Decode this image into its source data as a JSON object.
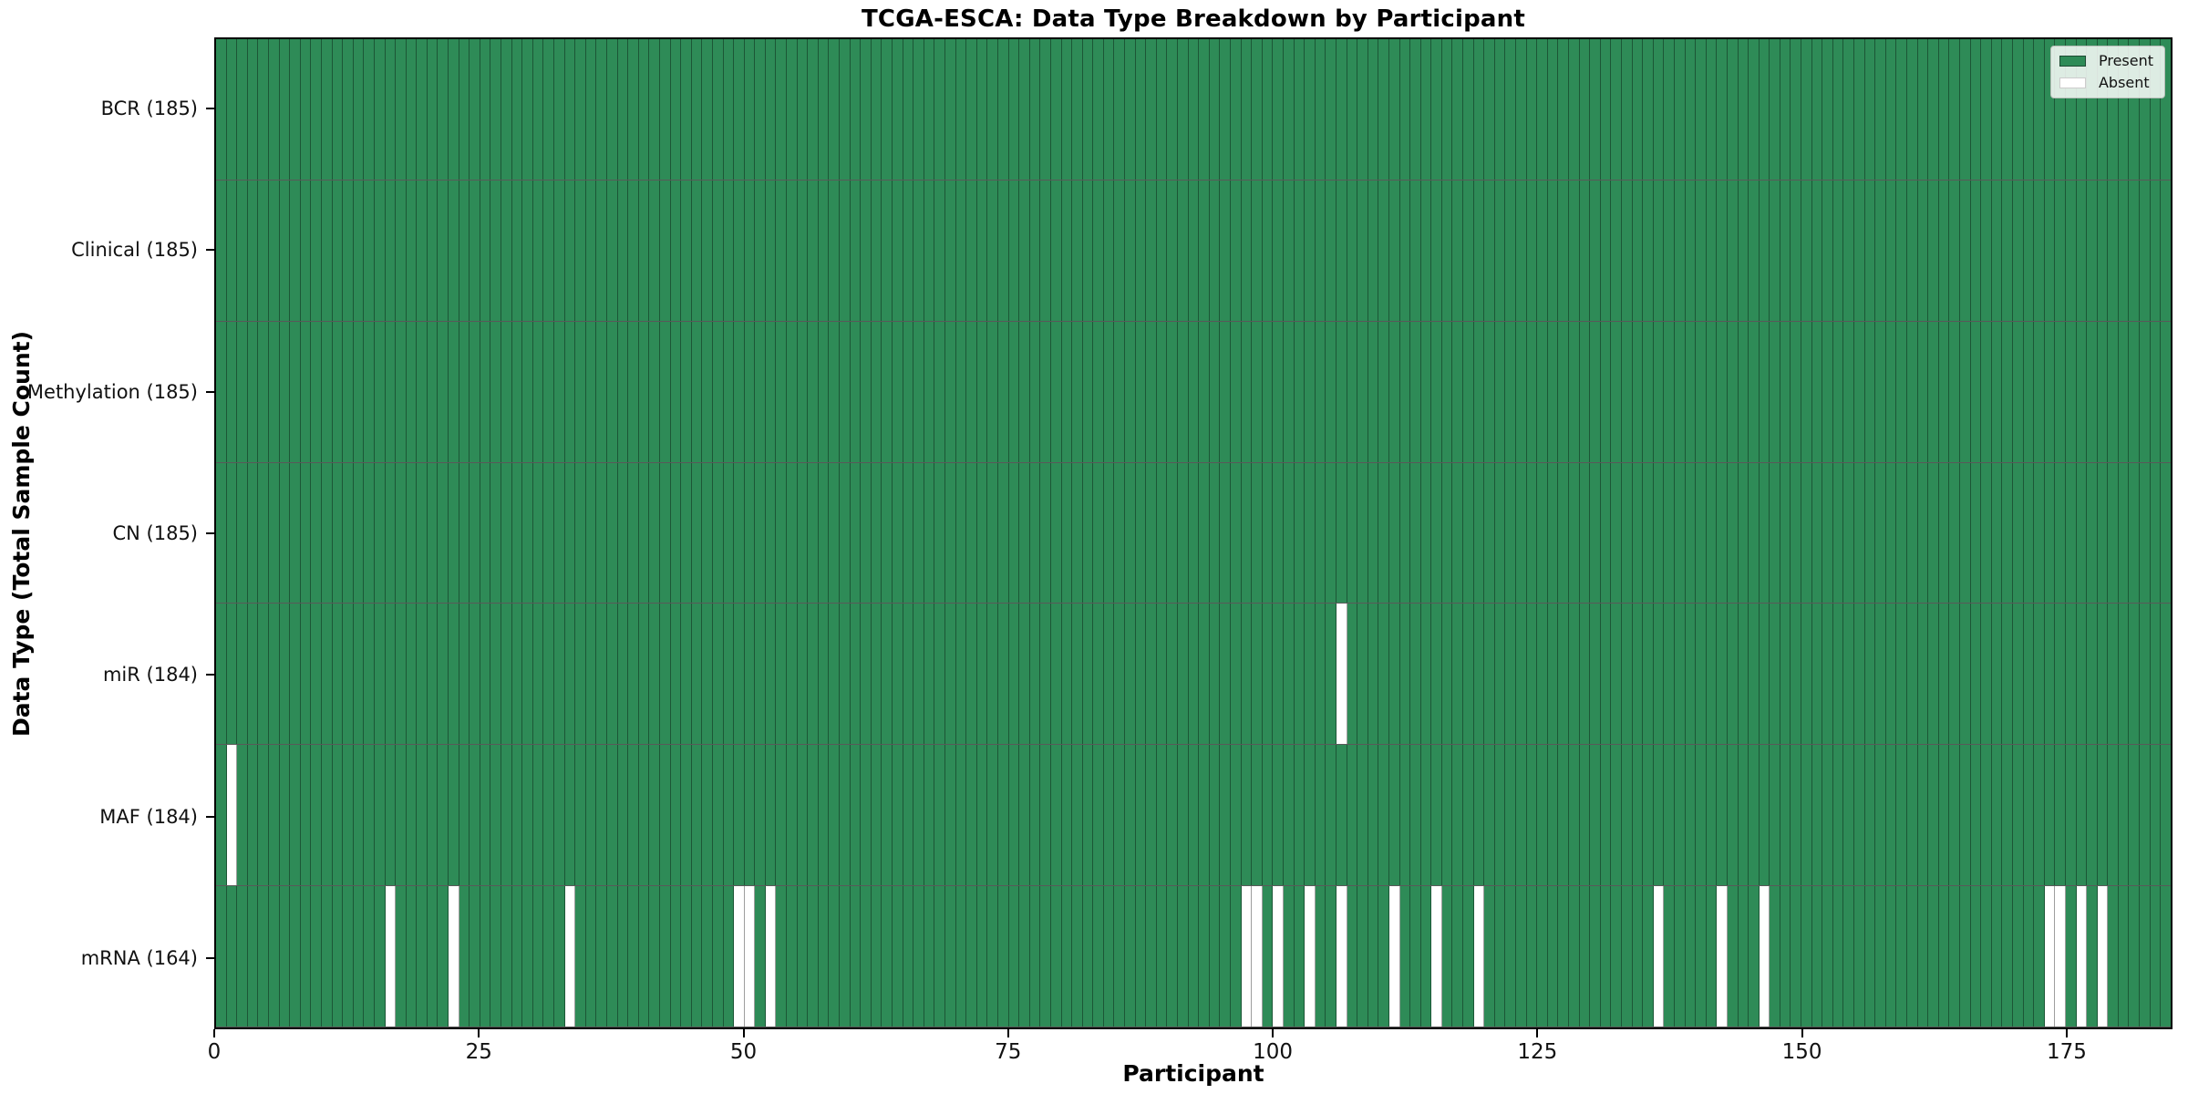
{
  "figure": {
    "title": "TCGA-ESCA: Data Type Breakdown by Participant",
    "xlabel": "Participant",
    "ylabel": "Data Type (Total Sample Count)"
  },
  "legend": {
    "position": "upper-right",
    "items": [
      {
        "label": "Present",
        "color": "#2e8b57",
        "edge": "#1d4a33"
      },
      {
        "label": "Absent",
        "color": "#ffffff",
        "edge": "#cccccc"
      }
    ]
  },
  "chart_data": {
    "type": "heatmap",
    "title": "TCGA-ESCA: Data Type Breakdown by Participant",
    "xlabel": "Participant",
    "ylabel": "Data Type (Total Sample Count)",
    "n_participants": 185,
    "x_ticks": [
      0,
      25,
      50,
      75,
      100,
      125,
      150,
      175
    ],
    "xlim": [
      0,
      185
    ],
    "grid": "cell-edges",
    "legend_position": "upper right",
    "colors": {
      "present": "#2e8b57",
      "absent": "#ffffff",
      "cell_edge": "rgba(0,0,0,0.38)",
      "row_edge": "rgba(0,0,0,0.65)"
    },
    "rows": [
      {
        "data_type": "BCR",
        "total": 185,
        "label": "BCR (185)",
        "absent_participants": []
      },
      {
        "data_type": "Clinical",
        "total": 185,
        "label": "Clinical (185)",
        "absent_participants": []
      },
      {
        "data_type": "Methylation",
        "total": 185,
        "label": "Methylation (185)",
        "absent_participants": []
      },
      {
        "data_type": "CN",
        "total": 185,
        "label": "CN (185)",
        "absent_participants": []
      },
      {
        "data_type": "miR",
        "total": 184,
        "label": "miR (184)",
        "absent_participants": [
          106
        ]
      },
      {
        "data_type": "MAF",
        "total": 184,
        "label": "MAF (184)",
        "absent_participants": [
          1
        ]
      },
      {
        "data_type": "mRNA",
        "total": 164,
        "label": "mRNA (164)",
        "absent_participants": [
          16,
          22,
          33,
          49,
          50,
          52,
          97,
          98,
          100,
          103,
          106,
          111,
          115,
          119,
          136,
          142,
          146,
          173,
          174,
          176,
          178
        ]
      }
    ]
  }
}
